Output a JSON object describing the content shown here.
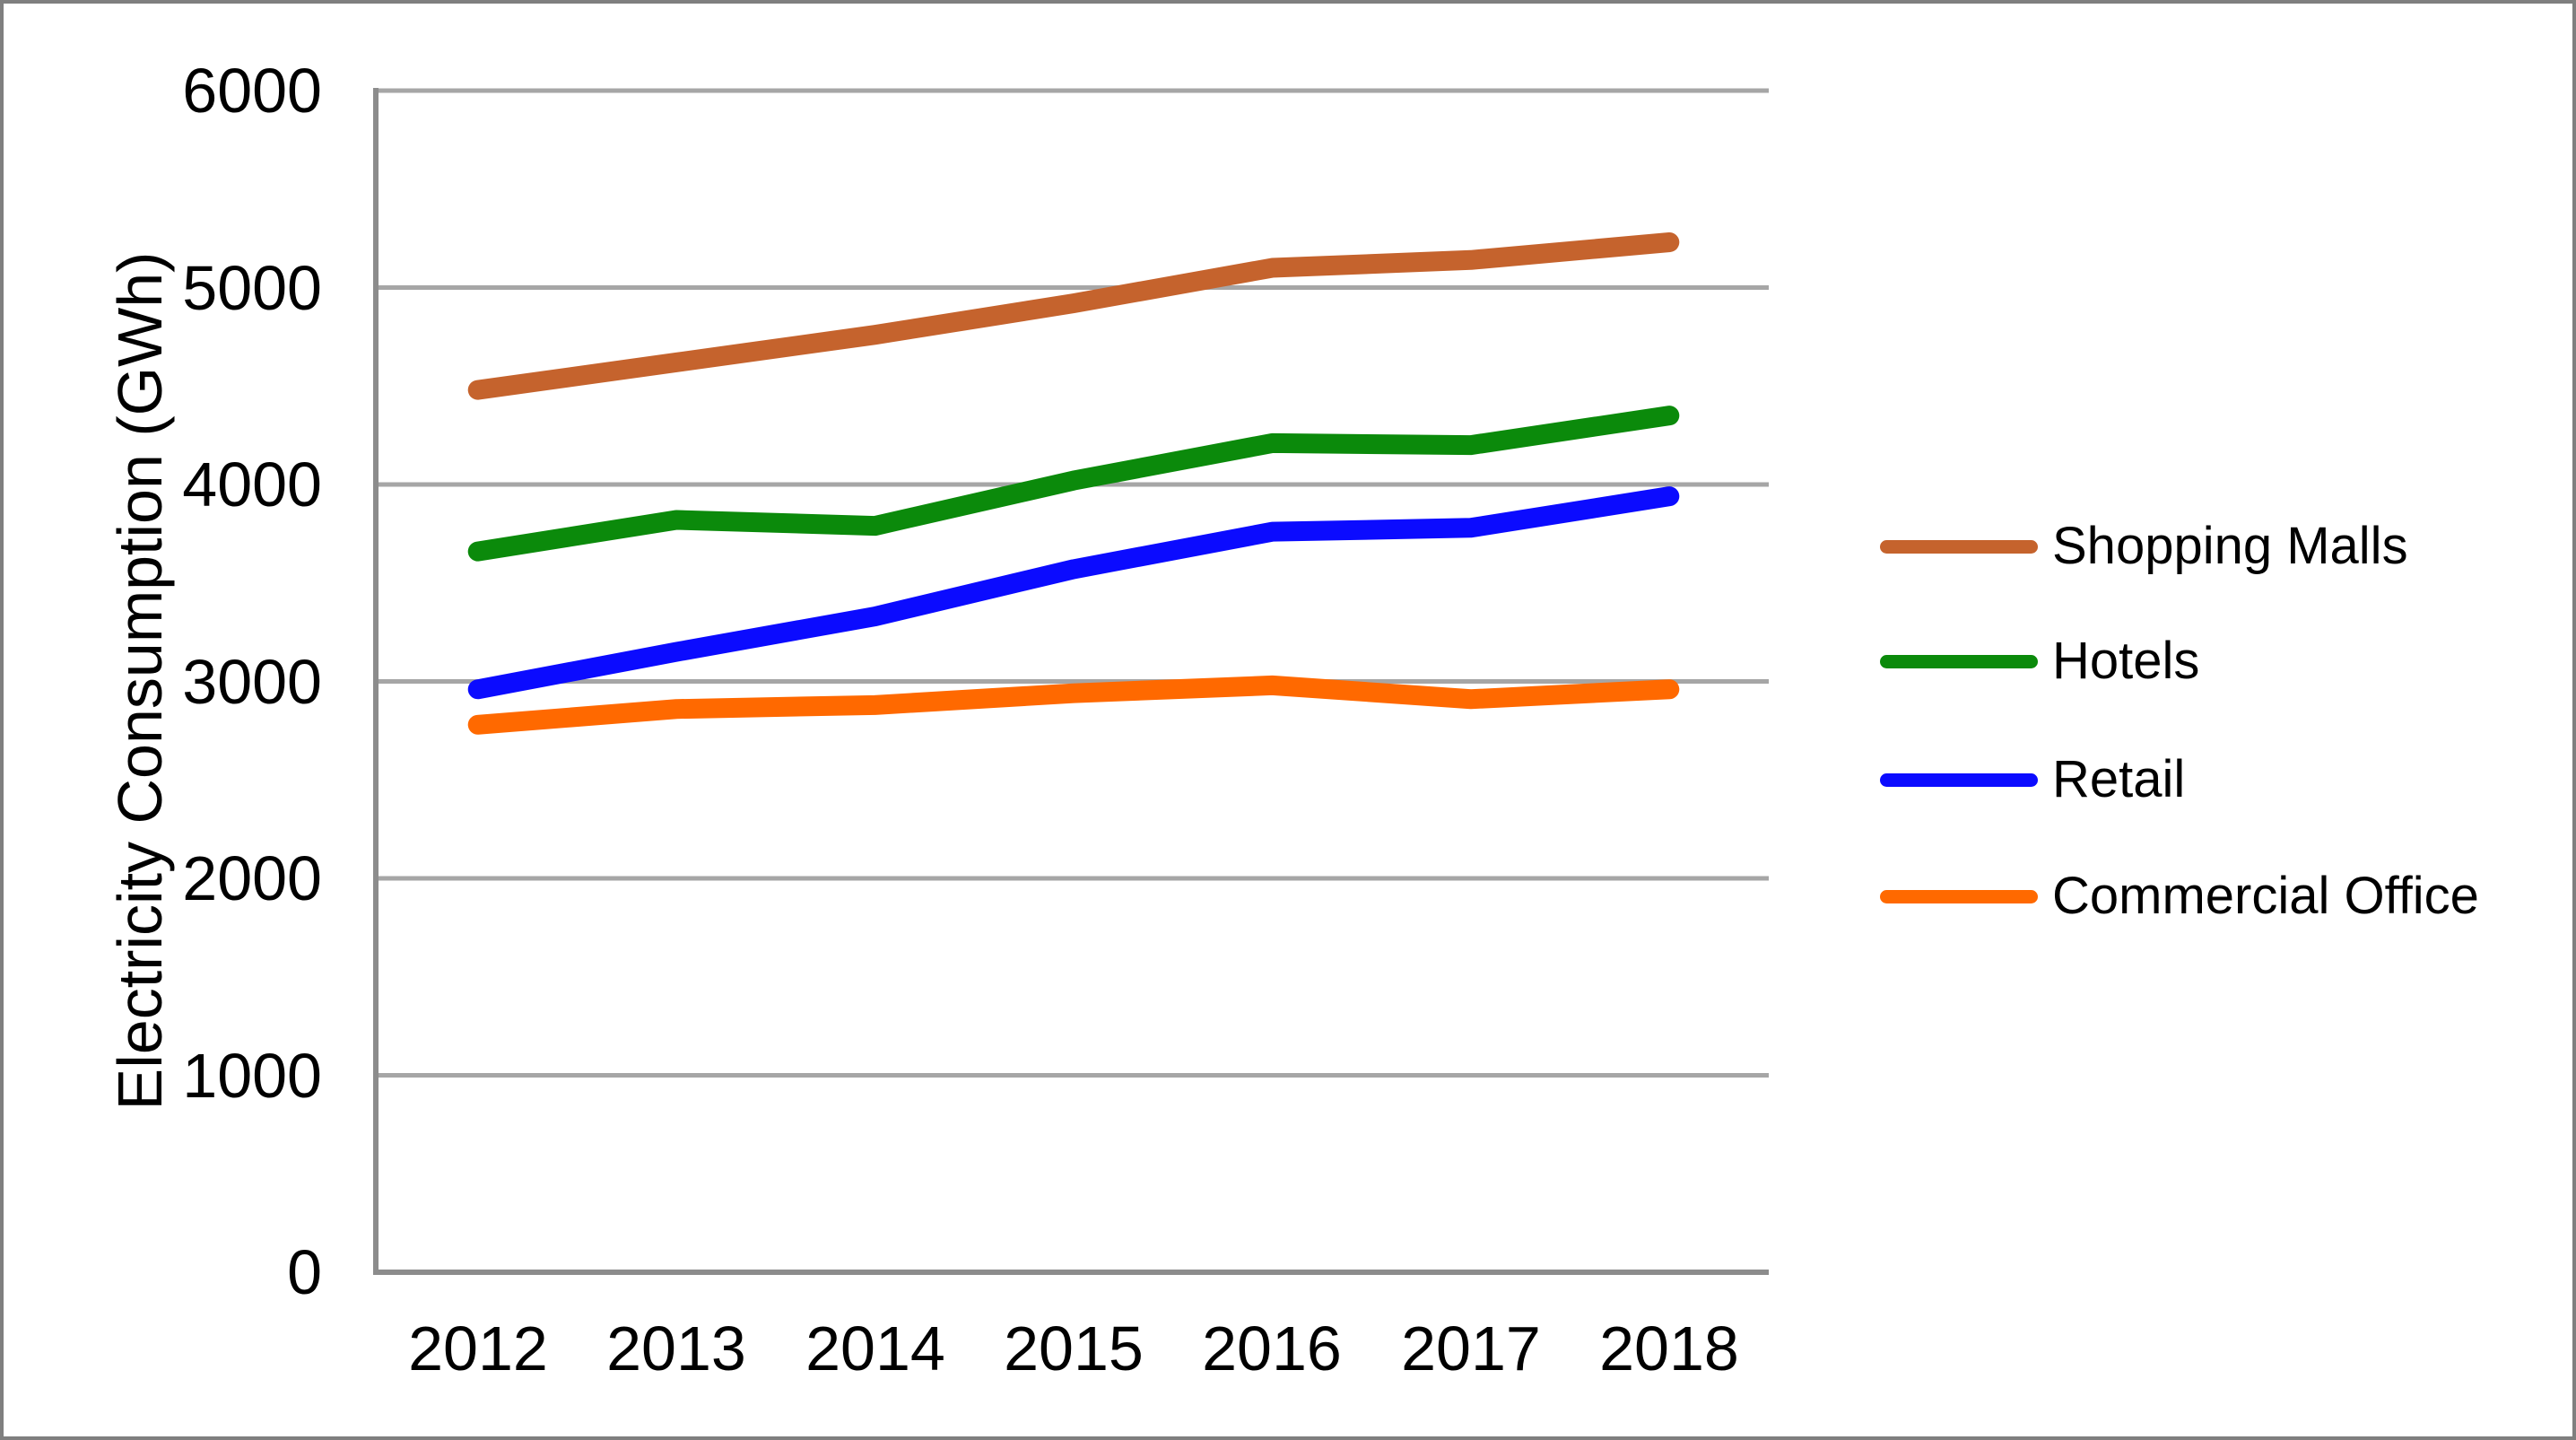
{
  "chart_data": {
    "type": "line",
    "title": "",
    "xlabel": "",
    "ylabel": "Electricity Consumption (GWh)",
    "ylim": [
      0,
      6000
    ],
    "y_ticks": [
      "0",
      "1000",
      "2000",
      "3000",
      "4000",
      "5000",
      "6000"
    ],
    "categories": [
      "2012",
      "2013",
      "2014",
      "2015",
      "2016",
      "2017",
      "2018"
    ],
    "grid": "horizontal",
    "legend_position": "right",
    "series": [
      {
        "name": "Shopping Malls",
        "color": "#C5632D",
        "values": [
          4480,
          4620,
          4760,
          4920,
          5100,
          5140,
          5230
        ]
      },
      {
        "name": "Hotels",
        "color": "#0B8A0B",
        "values": [
          3660,
          3820,
          3790,
          4020,
          4210,
          4200,
          4350
        ]
      },
      {
        "name": "Retail",
        "color": "#0B0BFF",
        "values": [
          2960,
          3150,
          3330,
          3570,
          3760,
          3780,
          3940
        ]
      },
      {
        "name": "Commercial Office",
        "color": "#FF6900",
        "values": [
          2780,
          2860,
          2880,
          2940,
          2980,
          2910,
          2960
        ]
      }
    ]
  },
  "colors": {
    "background": "#FFFFFF",
    "border": "#7F7F7F",
    "gridline": "#A6A6A6",
    "axis": "#8C8C8C",
    "text": "#000000"
  }
}
